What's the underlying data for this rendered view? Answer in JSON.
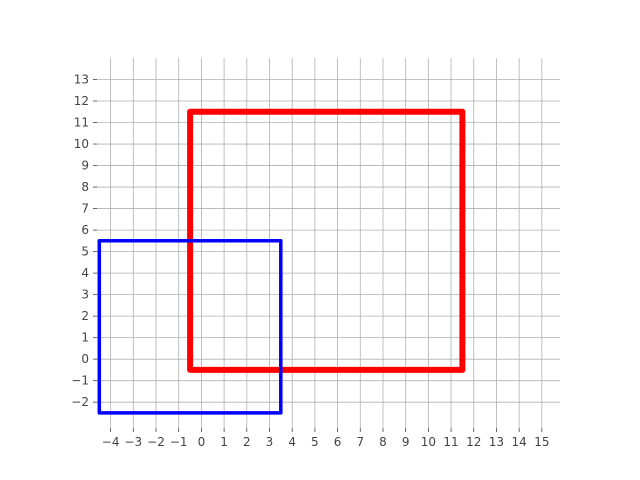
{
  "chart_data": {
    "type": "line",
    "title": "",
    "xlabel": "",
    "ylabel": "",
    "xlim": [
      -4.6,
      15.8
    ],
    "ylim": [
      -3.2,
      14.0
    ],
    "x_ticks": [
      -4,
      -3,
      -2,
      -1,
      0,
      1,
      2,
      3,
      4,
      5,
      6,
      7,
      8,
      9,
      10,
      11,
      12,
      13,
      14,
      15
    ],
    "y_ticks": [
      -2,
      -1,
      0,
      1,
      2,
      3,
      4,
      5,
      6,
      7,
      8,
      9,
      10,
      11,
      12,
      13
    ],
    "grid": true,
    "legend": "none",
    "series": [
      {
        "color": "#ff0000",
        "line_width": "thick",
        "x": [
          -0.5,
          11.5,
          11.5,
          -0.5,
          -0.5
        ],
        "y": [
          -0.5,
          -0.5,
          11.5,
          11.5,
          -0.5
        ]
      },
      {
        "color": "#0000ff",
        "line_width": "medium",
        "x": [
          -4.5,
          3.5,
          3.5,
          -4.5,
          -4.5
        ],
        "y": [
          -2.5,
          -2.5,
          5.5,
          5.5,
          -2.5
        ]
      }
    ]
  }
}
